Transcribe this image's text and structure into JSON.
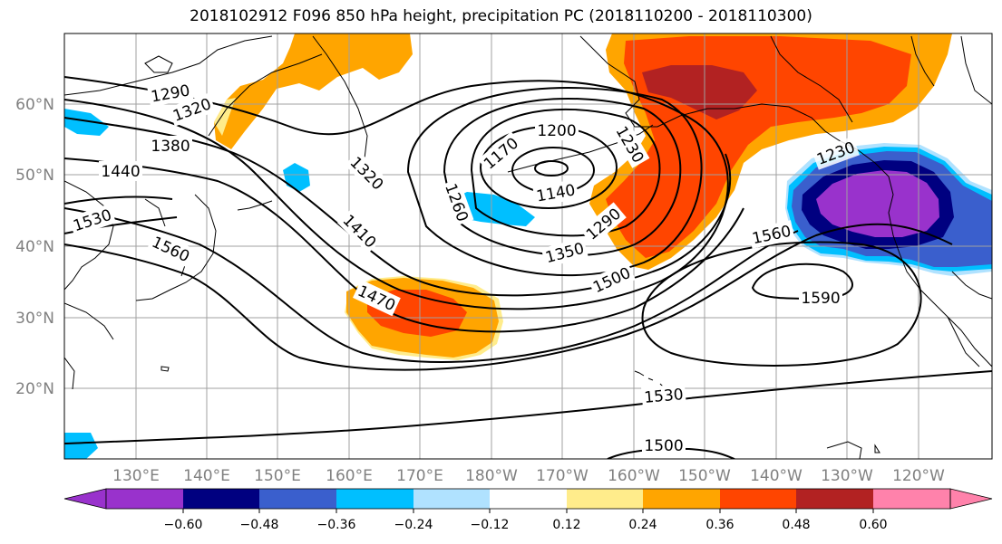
{
  "title": "2018102912 F096 850 hPa height, precipitation PC (2018110200 - 2018110300)",
  "lat_labels": [
    {
      "label": "60°N",
      "lat": 60
    },
    {
      "label": "50°N",
      "lat": 50
    },
    {
      "label": "40°N",
      "lat": 40
    },
    {
      "label": "30°N",
      "lat": 30
    },
    {
      "label": "20°N",
      "lat": 20
    }
  ],
  "lon_labels": [
    {
      "label": "130°E",
      "lon": 130
    },
    {
      "label": "140°E",
      "lon": 140
    },
    {
      "label": "150°E",
      "lon": 150
    },
    {
      "label": "160°E",
      "lon": 160
    },
    {
      "label": "170°E",
      "lon": 170
    },
    {
      "label": "180°W",
      "lon": 180
    },
    {
      "label": "170°W",
      "lon": 190
    },
    {
      "label": "160°W",
      "lon": 200
    },
    {
      "label": "150°W",
      "lon": 210
    },
    {
      "label": "140°W",
      "lon": 220
    },
    {
      "label": "130°W",
      "lon": 230
    },
    {
      "label": "120°W",
      "lon": 240
    }
  ],
  "contour_labels": [
    "1290",
    "1320",
    "1380",
    "1440",
    "1530",
    "1560",
    "1320",
    "1410",
    "1260",
    "1170",
    "1200",
    "1230",
    "1140",
    "1290",
    "1350",
    "1500",
    "1470",
    "1560",
    "1590",
    "1530",
    "1500",
    "1230"
  ],
  "colorbar": {
    "ticks": [
      "−0.60",
      "−0.48",
      "−0.36",
      "−0.24",
      "−0.12",
      "0.12",
      "0.24",
      "0.36",
      "0.48",
      "0.60"
    ],
    "colors": [
      "#9932cc",
      "#000080",
      "#3a5fcd",
      "#00bfff",
      "#b0e2ff",
      "#ffffff",
      "#ffec8b",
      "#ffa500",
      "#ff4500",
      "#b22222",
      "#ff82ab"
    ]
  },
  "fill_colors": {
    "orange": "#ffa500",
    "red_orange": "#ff4500",
    "dark_red": "#b22222",
    "light_yellow": "#ffec8b",
    "sky_blue": "#00bfff",
    "light_blue": "#b0e2ff",
    "royal_blue": "#3a5fcd",
    "navy": "#000080",
    "purple": "#9932cc"
  }
}
